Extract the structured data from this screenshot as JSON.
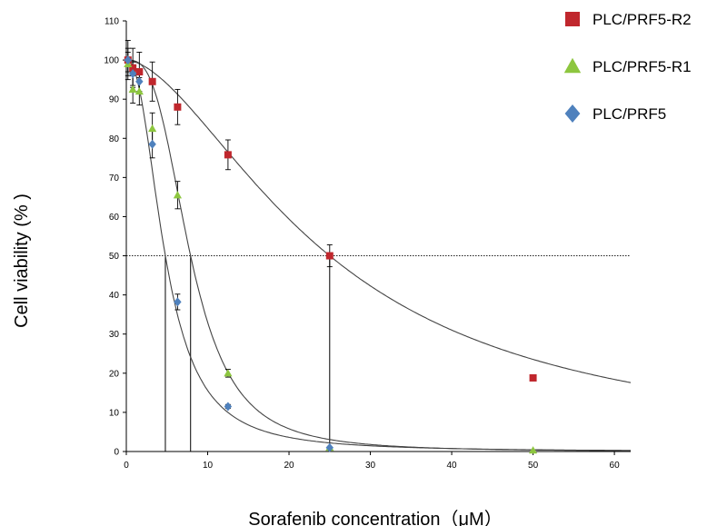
{
  "chart_data": {
    "type": "scatter",
    "title": "",
    "xlabel": "Sorafenib concentration（μM）",
    "ylabel": "Cell viability (% )",
    "xlim": [
      0,
      62
    ],
    "ylim": [
      0,
      110
    ],
    "xticks": [
      0,
      10,
      20,
      30,
      40,
      50,
      60
    ],
    "yticks": [
      0,
      10,
      20,
      30,
      40,
      50,
      60,
      70,
      80,
      90,
      100,
      110
    ],
    "grid": false,
    "legend_position": "top-right",
    "reference_line_y": 50,
    "series": [
      {
        "name": "PLC/PRF5-R2",
        "color": "#c0272d",
        "marker": "square",
        "x": [
          0.2,
          0.8,
          1.6,
          3.2,
          6.3,
          12.5,
          25,
          50
        ],
        "y": [
          100,
          98,
          97,
          94.5,
          88,
          75.8,
          50,
          18.8
        ],
        "err": [
          5,
          5,
          5,
          5,
          4.5,
          3.8,
          2.8,
          0
        ],
        "ic50": 25
      },
      {
        "name": "PLC/PRF5-R1",
        "color": "#8dc63f",
        "marker": "triangle",
        "x": [
          0.2,
          0.8,
          1.6,
          3.2,
          6.3,
          12.5,
          25,
          50
        ],
        "y": [
          99,
          92.5,
          92,
          82.5,
          65.5,
          20,
          1,
          0.3
        ],
        "err": [
          3,
          3.5,
          3.5,
          4,
          3.5,
          1,
          0,
          0
        ],
        "ic50": 7.9
      },
      {
        "name": "PLC/PRF5",
        "color": "#4f81bd",
        "marker": "diamond",
        "x": [
          0.2,
          0.8,
          1.6,
          3.2,
          6.3,
          12.5,
          25
        ],
        "y": [
          100,
          96.5,
          94.5,
          78.5,
          38.2,
          11.5,
          1
        ],
        "err": [
          3,
          3,
          3,
          3.5,
          2,
          0.5,
          0
        ],
        "ic50": 4.8
      }
    ]
  }
}
